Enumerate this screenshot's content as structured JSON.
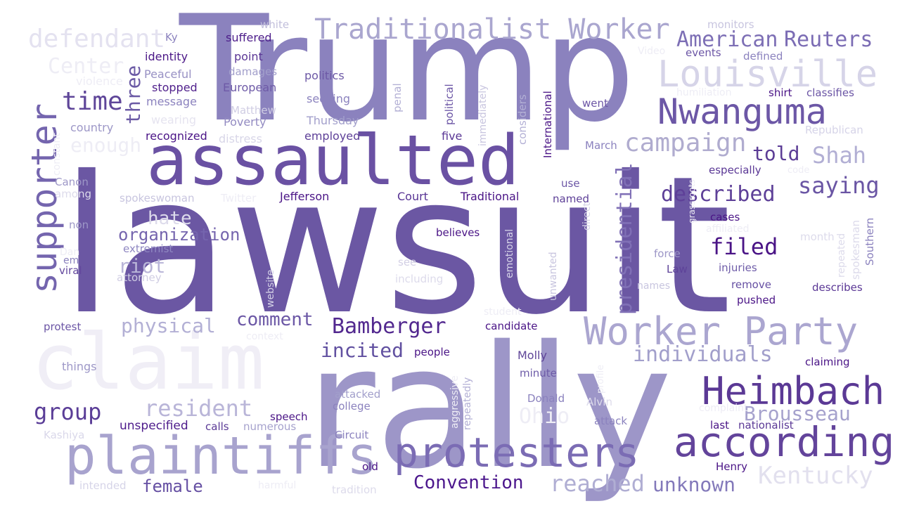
{
  "words": {
    "lawsuit": {
      "text": "lawsuit",
      "color": "#6b57a3"
    },
    "trump": {
      "text": "Trump",
      "color": "#8b82be"
    },
    "rally": {
      "text": "rally",
      "color": "#9d96c8"
    },
    "claim": {
      "text": "claim",
      "color": "#f0eef6"
    },
    "assaulted": {
      "text": "assaulted",
      "color": "#6a51a3"
    },
    "plaintiffs": {
      "text": "plaintiffs",
      "color": "#a8a3ce"
    },
    "protesters": {
      "text": "protesters",
      "color": "#7b6cb4"
    },
    "according": {
      "text": "according",
      "color": "#63449b"
    },
    "worker_party": {
      "text": "Worker Party",
      "color": "#aba6d0"
    },
    "heimbach": {
      "text": "Heimbach",
      "color": "#5b3995"
    },
    "nwanguma": {
      "text": "Nwanguma",
      "color": "#6c57a6"
    },
    "louisville": {
      "text": "Louisville",
      "color": "#d6d4e8"
    },
    "traditionalist_worker": {
      "text": "Traditionalist Worker",
      "color": "#aaa6cf"
    },
    "supporter": {
      "text": "supporter",
      "color": "#7465ae"
    },
    "defendant": {
      "text": "defendant",
      "color": "#e4e2f0"
    },
    "american": {
      "text": "American",
      "color": "#7d6fb5"
    },
    "reuters": {
      "text": "Reuters",
      "color": "#7b6cb4"
    },
    "campaign": {
      "text": "campaign",
      "color": "#b0accf"
    },
    "shah": {
      "text": "Shah",
      "color": "#b2afd4"
    },
    "told": {
      "text": "told",
      "color": "#5c3d96"
    },
    "saying": {
      "text": "saying",
      "color": "#6a55a4"
    },
    "described": {
      "text": "described",
      "color": "#5e4098"
    },
    "presidential": {
      "text": "presidential",
      "color": "#8070b6"
    },
    "filed": {
      "text": "filed",
      "color": "#4a1486"
    },
    "time": {
      "text": "time",
      "color": "#5f4699"
    },
    "three": {
      "text": "three",
      "color": "#6b5aa5"
    },
    "center": {
      "text": "Center",
      "color": "#eeedf5"
    },
    "enough": {
      "text": "enough",
      "color": "#eeedf5"
    },
    "organization": {
      "text": "organization",
      "color": "#7565ae"
    },
    "hate": {
      "text": "hate",
      "color": "#dddbeb"
    },
    "riot": {
      "text": "riot",
      "color": "#b9b5d8"
    },
    "physical": {
      "text": "physical",
      "color": "#b3b0d5"
    },
    "comment": {
      "text": "comment",
      "color": "#6c58a6"
    },
    "bamberger": {
      "text": "Bamberger",
      "color": "#52288f"
    },
    "incited": {
      "text": "incited",
      "color": "#6150a0"
    },
    "individuals": {
      "text": "individuals",
      "color": "#a29fcb"
    },
    "group": {
      "text": "group",
      "color": "#5a3d97"
    },
    "resident": {
      "text": "resident",
      "color": "#b9b5d8"
    },
    "brousseau": {
      "text": "Brousseau",
      "color": "#a6a2cd"
    },
    "ohio": {
      "text": "Ohio",
      "color": "#eeedf5"
    },
    "reached": {
      "text": "reached",
      "color": "#b0aed3"
    },
    "unknown": {
      "text": "unknown",
      "color": "#8379ba"
    },
    "kentucky": {
      "text": "Kentucky",
      "color": "#e2e0ee"
    },
    "convention": {
      "text": "Convention",
      "color": "#4c178d"
    },
    "female": {
      "text": "female",
      "color": "#6650a3"
    },
    "unspecified": {
      "text": "unspecified",
      "color": "#4d1b8b"
    },
    "white": {
      "text": "white",
      "color": "#c1bedb"
    },
    "suffered": {
      "text": "suffered",
      "color": "#4d1d8a"
    },
    "ky": {
      "text": "Ky",
      "color": "#8b82be"
    },
    "identity": {
      "text": "identity",
      "color": "#4b1787"
    },
    "point": {
      "text": "point",
      "color": "#5b3695"
    },
    "peaceful": {
      "text": "Peaceful",
      "color": "#9891c4"
    },
    "violence": {
      "text": "violence",
      "color": "#eeedf5"
    },
    "stopped": {
      "text": "stopped",
      "color": "#4f1f8b"
    },
    "message": {
      "text": "message",
      "color": "#8b82be"
    },
    "damages": {
      "text": "damages",
      "color": "#a29fcb"
    },
    "european": {
      "text": "European",
      "color": "#6e5aa7"
    },
    "politics": {
      "text": "politics",
      "color": "#6d59a6"
    },
    "seeking": {
      "text": "seeking",
      "color": "#8b82be"
    },
    "matthew": {
      "text": "Matthew",
      "color": "#d0cde3"
    },
    "poverty": {
      "text": "Poverty",
      "color": "#938bc2"
    },
    "thursday": {
      "text": "Thursday",
      "color": "#a29fcb"
    },
    "country": {
      "text": "country",
      "color": "#9d97c7"
    },
    "wearing": {
      "text": "wearing",
      "color": "#e6e4f0"
    },
    "recognized": {
      "text": "recognized",
      "color": "#4a1486"
    },
    "distress": {
      "text": "distress",
      "color": "#d8d6e8"
    },
    "employed": {
      "text": "employed",
      "color": "#5e4098"
    },
    "five": {
      "text": "five",
      "color": "#5a3795"
    },
    "canon": {
      "text": "Canon",
      "color": "#9d97c7"
    },
    "among": {
      "text": "among",
      "color": "#dddbeb"
    },
    "spokeswoman": {
      "text": "spokeswoman",
      "color": "#c8c5df"
    },
    "twitter": {
      "text": "Twitter",
      "color": "#eeedf5"
    },
    "jefferson": {
      "text": "Jefferson",
      "color": "#4a1486"
    },
    "court": {
      "text": "Court",
      "color": "#583494"
    },
    "traditional": {
      "text": "Traditional",
      "color": "#4a1486"
    },
    "non": {
      "text": "non",
      "color": "#9d97c7"
    },
    "extremist": {
      "text": "extremist",
      "color": "#9088c2"
    },
    "em": {
      "text": "em",
      "color": "#8b82be"
    },
    "viral": {
      "text": "viral",
      "color": "#62479d"
    },
    "attorney": {
      "text": "attorney",
      "color": "#d0cde3"
    },
    "dan": {
      "text": "Dan",
      "color": "#eeedf5"
    },
    "website": {
      "text": "website",
      "color": "#d3d0e5"
    },
    "see": {
      "text": "see",
      "color": "#d3d0e5"
    },
    "including": {
      "text": "including",
      "color": "#dddbeb"
    },
    "protest": {
      "text": "protest",
      "color": "#6b55a5"
    },
    "context": {
      "text": "context",
      "color": "#eeedf5"
    },
    "things": {
      "text": "things",
      "color": "#9d97c7"
    },
    "kashiya": {
      "text": "Kashiya",
      "color": "#dad8ea"
    },
    "intended": {
      "text": "intended",
      "color": "#d6d4e8"
    },
    "old": {
      "text": "old",
      "color": "#4a1486"
    },
    "tradition": {
      "text": "tradition",
      "color": "#dddbeb"
    },
    "harmful": {
      "text": "harmful",
      "color": "#eeedf5"
    },
    "speech": {
      "text": "speech",
      "color": "#4a1486"
    },
    "calls": {
      "text": "calls",
      "color": "#5b3a96"
    },
    "numerous": {
      "text": "numerous",
      "color": "#a6a2cd"
    },
    "circuit": {
      "text": "Circuit",
      "color": "#8b82be"
    },
    "college": {
      "text": "college",
      "color": "#8b82be"
    },
    "attacked": {
      "text": "attacked",
      "color": "#a29fcb"
    },
    "people": {
      "text": "people",
      "color": "#4a1486"
    },
    "molly": {
      "text": "Molly",
      "color": "#5f4598"
    },
    "minute": {
      "text": "minute",
      "color": "#6e5ca8"
    },
    "donald": {
      "text": "Donald",
      "color": "#8b82be"
    },
    "alvin": {
      "text": "Alvin",
      "color": "#dddbeb"
    },
    "attack": {
      "text": "attack",
      "color": "#8b82be"
    },
    "complaint": {
      "text": "complaint",
      "color": "#eeedf5"
    },
    "last": {
      "text": "last",
      "color": "#4a1486"
    },
    "nationalist": {
      "text": "nationalist",
      "color": "#5b3996"
    },
    "claiming": {
      "text": "claiming",
      "color": "#4a1486"
    },
    "henry": {
      "text": "Henry",
      "color": "#4a1486"
    },
    "candidate": {
      "text": "candidate",
      "color": "#4a1486"
    },
    "student": {
      "text": "student",
      "color": "#eeedf5"
    },
    "law": {
      "text": "Law",
      "color": "#5e4399"
    },
    "force": {
      "text": "force",
      "color": "#9d97c7"
    },
    "names": {
      "text": "names",
      "color": "#c8c5df"
    },
    "injuries": {
      "text": "injuries",
      "color": "#6e5ca8"
    },
    "remove": {
      "text": "remove",
      "color": "#6650a3"
    },
    "pushed": {
      "text": "pushed",
      "color": "#4a1486"
    },
    "describes": {
      "text": "describes",
      "color": "#5a3795"
    },
    "cases": {
      "text": "cases",
      "color": "#4a1486"
    },
    "affiliated": {
      "text": "affiliated",
      "color": "#eeedf5"
    },
    "month": {
      "text": "month",
      "color": "#dddbeb"
    },
    "believes": {
      "text": "believes",
      "color": "#4a1486"
    },
    "use": {
      "text": "use",
      "color": "#6b55a5"
    },
    "named": {
      "text": "named",
      "color": "#5e4098"
    },
    "march": {
      "text": "March",
      "color": "#8b82be"
    },
    "went": {
      "text": "went",
      "color": "#6b55a5"
    },
    "especially": {
      "text": "especially",
      "color": "#5a3795"
    },
    "republican": {
      "text": "Republican",
      "color": "#d6d4e8"
    },
    "shirt": {
      "text": "shirt",
      "color": "#4a1486"
    },
    "classifies": {
      "text": "classifies",
      "color": "#6b55a5"
    },
    "humiliation": {
      "text": "humiliation",
      "color": "#eeedf5"
    },
    "defined": {
      "text": "defined",
      "color": "#8b82be"
    },
    "events": {
      "text": "events",
      "color": "#6b55a5"
    },
    "monitors": {
      "text": "monitors",
      "color": "#c8c5df"
    },
    "video": {
      "text": "Video",
      "color": "#eeedf5"
    },
    "code": {
      "text": "code",
      "color": "#eeedf5"
    },
    "penal": {
      "text": "penal",
      "color": "#b3b0d5"
    },
    "political": {
      "text": "political",
      "color": "#6b55a5"
    },
    "immediately": {
      "text": "immediately",
      "color": "#c8c5df"
    },
    "considers": {
      "text": "considers",
      "color": "#b3b0d5"
    },
    "international": {
      "text": "International",
      "color": "#4a1486"
    },
    "direct": {
      "text": "direct",
      "color": "#d6d4e8"
    },
    "grassroots": {
      "text": "grassroots",
      "color": "#eeedf5"
    },
    "emotional": {
      "text": "emotional",
      "color": "#d6d4e8"
    },
    "unwanted": {
      "text": "unwanted",
      "color": "#c8c5df"
    },
    "aggressive": {
      "text": "aggressive",
      "color": "#eeedf5"
    },
    "repeatedly": {
      "text": "repeatedly",
      "color": "#b3b0d5"
    },
    "profile": {
      "text": "profile",
      "color": "#eeedf5"
    },
    "spokesman": {
      "text": "spokesman",
      "color": "#dddbeb"
    },
    "repeated": {
      "text": "repeated",
      "color": "#dddbeb"
    },
    "southern": {
      "text": "Southern",
      "color": "#8b82be"
    },
    "constant": {
      "text": "constant",
      "color": "#eeedf5"
    }
  }
}
